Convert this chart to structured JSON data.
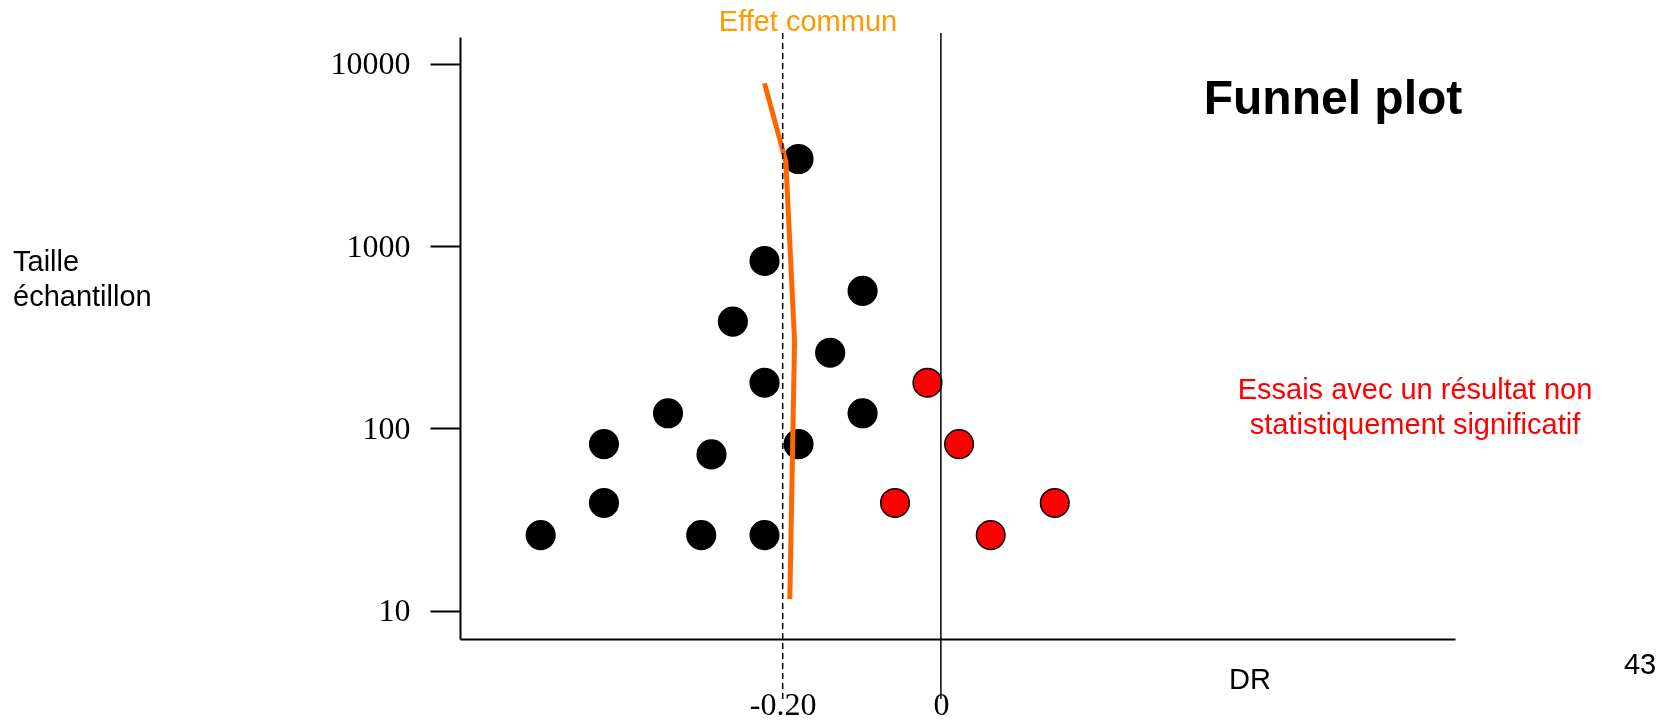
{
  "chart_data": {
    "type": "scatter",
    "title": "Funnel plot",
    "xlabel": "DR",
    "annotations": [
      "Effet commun",
      "Taille échantillon",
      "Essais avec un résultat non statistiquement significatif",
      "43"
    ],
    "log": "y",
    "xlim": [
      -0.608,
      0.65
    ],
    "ylim": [
      7,
      14000
    ],
    "xticks": [
      {
        "value": -0.2,
        "label": "-0.20"
      },
      0
    ],
    "yticks": [
      10,
      100,
      1000,
      10000
    ],
    "grid": false,
    "marker": "circle",
    "series": [
      {
        "color": "#000000",
        "x": [
          -0.506,
          -0.426,
          -0.426,
          -0.345,
          -0.29,
          -0.303,
          -0.223,
          -0.223,
          -0.263,
          -0.223,
          -0.18,
          -0.18,
          -0.14,
          -0.099,
          -0.099
        ],
        "values": [
          26,
          82,
          39,
          121,
          72,
          26,
          26,
          178,
          385,
          828,
          82,
          3000,
          260,
          121,
          568
        ]
      },
      {
        "color": "#ff0000",
        "x": [
          -0.017,
          0.023,
          -0.058,
          0.063,
          0.144
        ],
        "values": [
          178,
          82,
          39,
          26,
          39
        ]
      },
      {
        "type": "line",
        "color": "#ff6600",
        "marker": "none",
        "x": [
          -0.223,
          -0.196,
          -0.185,
          -0.191
        ],
        "values": [
          7800,
          2900,
          300,
          11.6
        ]
      }
    ],
    "ref_lines": [
      {
        "axis": "x",
        "value": -0.2,
        "line_style": "dashed",
        "color": "#000000"
      },
      {
        "axis": "x",
        "value": 0,
        "line_style": "solid",
        "color": "#000000"
      }
    ]
  }
}
